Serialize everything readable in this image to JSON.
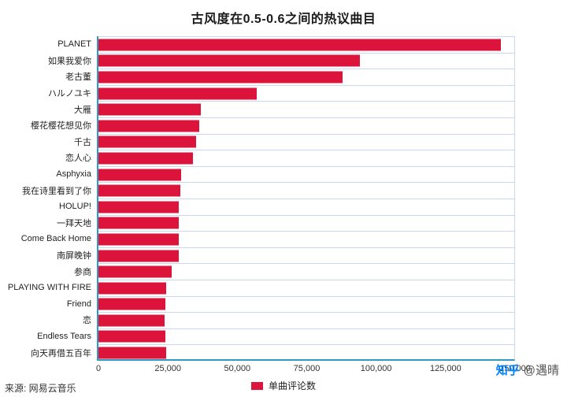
{
  "chart_data": {
    "type": "bar",
    "orientation": "horizontal",
    "title": "古风度在0.5-0.6之间的热议曲目",
    "categories": [
      "PLANET",
      "如果我爱你",
      "老古董",
      "ハルノユキ",
      "大雁",
      "樱花樱花想见你",
      "千古",
      "恋人心",
      "Asphyxia",
      "我在诗里看到了你",
      "HOLUP!",
      "一拜天地",
      "Come Back Home",
      "南屏晚钟",
      "参商",
      "PLAYING WITH FIRE",
      "Friend",
      "恋",
      "Endless Tears",
      "向天再借五百年"
    ],
    "values": [
      145000,
      94000,
      88000,
      57000,
      37000,
      36400,
      35300,
      33900,
      29900,
      29400,
      28800,
      28800,
      29000,
      28800,
      26300,
      24300,
      24000,
      23700,
      24000,
      24300
    ],
    "xlim": [
      0,
      150000
    ],
    "x_ticks": [
      0,
      25000,
      50000,
      75000,
      100000,
      125000,
      150000
    ],
    "x_tick_labels": [
      "0",
      "25,000",
      "50,000",
      "75,000",
      "100,000",
      "125,000",
      "150,000"
    ],
    "xlabel": "",
    "ylabel": "",
    "grid": "horizontal-row-separators",
    "bar_color": "#dc143c",
    "gridline_color": "#c9d6f0",
    "spine_color": "#2f9bc1",
    "legend_position": "bottom-center",
    "legend_label": "单曲评论数"
  },
  "footer": {
    "source": "来源: 网易云音乐",
    "watermark_brand": "知乎",
    "watermark_author": "@遇晴"
  }
}
